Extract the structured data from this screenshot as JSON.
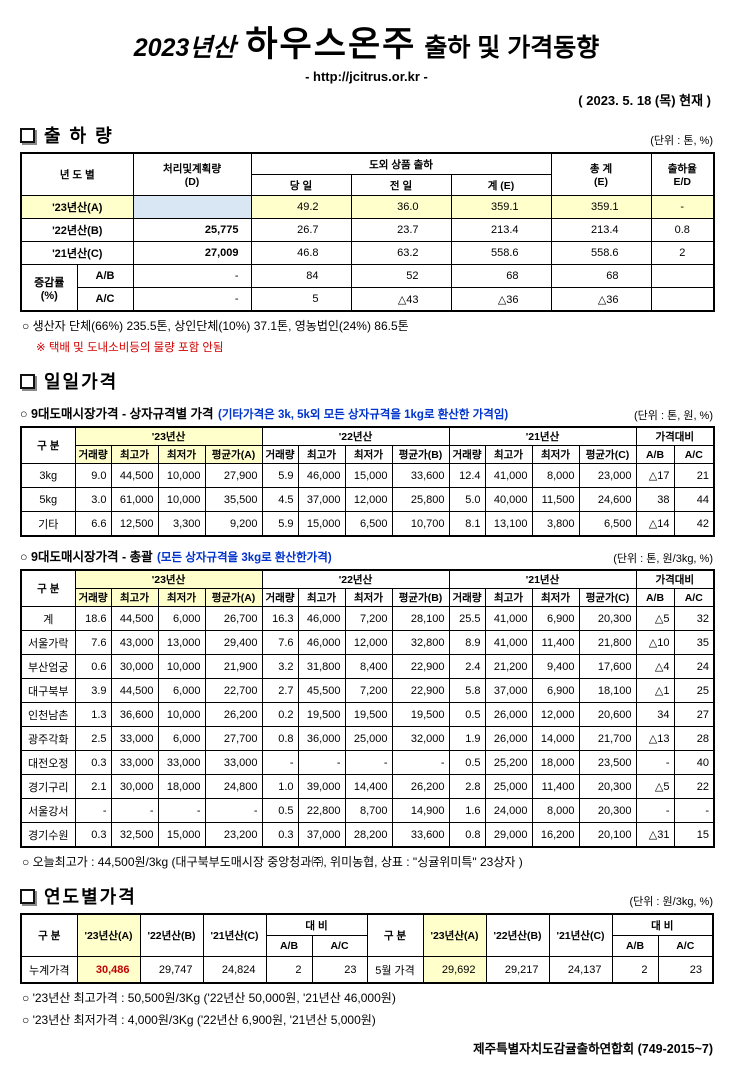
{
  "header": {
    "title_year": "2023년산",
    "title_main": "하우스온주",
    "title_suffix": "출하 및 가격동향",
    "url": "- http://jcitrus.or.kr -",
    "date": "( 2023. 5. 18 (목) 현재 )"
  },
  "shipment": {
    "heading": "출 하 량",
    "unit": "(단위 : 톤, %)",
    "headers": {
      "year": "년 도 별",
      "plan_l1": "처리및계획량",
      "plan_l2": "(D)",
      "export_group": "도외 상품 출하",
      "today": "당 일",
      "yesterday": "전 일",
      "sum": "계 (E)",
      "total_l1": "총 계",
      "total_l2": "(E)",
      "rate_l1": "출하율",
      "rate_l2": "E/D"
    },
    "row_23": {
      "label": "'23년산(A)",
      "plan": "",
      "today": "49.2",
      "yesterday": "36.0",
      "sum": "359.1",
      "total": "359.1",
      "rate": "-"
    },
    "row_22": {
      "label": "'22년산(B)",
      "plan": "25,775",
      "today": "26.7",
      "yesterday": "23.7",
      "sum": "213.4",
      "total": "213.4",
      "rate": "0.8"
    },
    "row_21": {
      "label": "'21년산(C)",
      "plan": "27,009",
      "today": "46.8",
      "yesterday": "63.2",
      "sum": "558.6",
      "total": "558.6",
      "rate": "2"
    },
    "change_label_l1": "증감률",
    "change_label_l2": "(%)",
    "row_ab": {
      "label": "A/B",
      "plan": "-",
      "today": "84",
      "yesterday": "52",
      "sum": "68",
      "total": "68",
      "rate": ""
    },
    "row_ac": {
      "label": "A/C",
      "plan": "-",
      "today": "5",
      "yesterday": "△43",
      "sum": "△36",
      "total": "△36",
      "rate": ""
    },
    "note1": "○ 생산자 단체(66%) 235.5톤, 상인단체(10%) 37.1톤, 영농법인(24%) 86.5톤",
    "note2": "※ 택배 및 도내소비등의 물량 포함 안됨"
  },
  "daily": {
    "heading": "일일가격",
    "sub1": {
      "title": "○ 9대도매시장가격 - 상자규격별 가격",
      "title_blue": "(기타가격은 3k, 5k외 모든 상자규격을 1kg로 환산한 가격임)",
      "unit": "(단위 : 톤, 원, %)"
    },
    "sub2": {
      "title": "○ 9대도매시장가격 - 총괄",
      "title_blue": "(모든 상자규격을 3kg로 환산한가격)",
      "unit": "(단위 : 톤, 원/3kg, %)"
    },
    "headers": {
      "gubun": "구  분",
      "y23": "'23년산",
      "y22": "'22년산",
      "y21": "'21년산",
      "compare": "가격대비",
      "vol": "거래량",
      "high": "최고가",
      "low": "최저가",
      "avg_a": "평균가(A)",
      "avg_b": "평균가(B)",
      "avg_c": "평균가(C)",
      "ab": "A/B",
      "ac": "A/C"
    },
    "size_rows": [
      [
        "3kg",
        "9.0",
        "44,500",
        "10,000",
        "27,900",
        "5.9",
        "46,000",
        "15,000",
        "33,600",
        "12.4",
        "41,000",
        "8,000",
        "23,000",
        "△17",
        "21"
      ],
      [
        "5kg",
        "3.0",
        "61,000",
        "10,000",
        "35,500",
        "4.5",
        "37,000",
        "12,000",
        "25,800",
        "5.0",
        "40,000",
        "11,500",
        "24,600",
        "38",
        "44"
      ],
      [
        "기타",
        "6.6",
        "12,500",
        "3,300",
        "9,200",
        "5.9",
        "15,000",
        "6,500",
        "10,700",
        "8.1",
        "13,100",
        "3,800",
        "6,500",
        "△14",
        "42"
      ]
    ],
    "market_rows": [
      [
        "계",
        "18.6",
        "44,500",
        "6,000",
        "26,700",
        "16.3",
        "46,000",
        "7,200",
        "28,100",
        "25.5",
        "41,000",
        "6,900",
        "20,300",
        "△5",
        "32"
      ],
      [
        "서울가락",
        "7.6",
        "43,000",
        "13,000",
        "29,400",
        "7.6",
        "46,000",
        "12,000",
        "32,800",
        "8.9",
        "41,000",
        "11,400",
        "21,800",
        "△10",
        "35"
      ],
      [
        "부산엄궁",
        "0.6",
        "30,000",
        "10,000",
        "21,900",
        "3.2",
        "31,800",
        "8,400",
        "22,900",
        "2.4",
        "21,200",
        "9,400",
        "17,600",
        "△4",
        "24"
      ],
      [
        "대구북부",
        "3.9",
        "44,500",
        "6,000",
        "22,700",
        "2.7",
        "45,500",
        "7,200",
        "22,900",
        "5.8",
        "37,000",
        "6,900",
        "18,100",
        "△1",
        "25"
      ],
      [
        "인천남촌",
        "1.3",
        "36,600",
        "10,000",
        "26,200",
        "0.2",
        "19,500",
        "19,500",
        "19,500",
        "0.5",
        "26,000",
        "12,000",
        "20,600",
        "34",
        "27"
      ],
      [
        "광주각화",
        "2.5",
        "33,000",
        "6,000",
        "27,700",
        "0.8",
        "36,000",
        "25,000",
        "32,000",
        "1.9",
        "26,000",
        "14,000",
        "21,700",
        "△13",
        "28"
      ],
      [
        "대전오정",
        "0.3",
        "33,000",
        "33,000",
        "33,000",
        "-",
        "-",
        "-",
        "-",
        "0.5",
        "25,200",
        "18,000",
        "23,500",
        "-",
        "40"
      ],
      [
        "경기구리",
        "2.1",
        "30,000",
        "18,000",
        "24,800",
        "1.0",
        "39,000",
        "14,400",
        "26,200",
        "2.8",
        "25,000",
        "11,400",
        "20,300",
        "△5",
        "22"
      ],
      [
        "서울강서",
        "-",
        "-",
        "-",
        "-",
        "0.5",
        "22,800",
        "8,700",
        "14,900",
        "1.6",
        "24,000",
        "8,000",
        "20,300",
        "-",
        "-"
      ],
      [
        "경기수원",
        "0.3",
        "32,500",
        "15,000",
        "23,200",
        "0.3",
        "37,000",
        "28,200",
        "33,600",
        "0.8",
        "29,000",
        "16,200",
        "20,100",
        "△31",
        "15"
      ]
    ],
    "today_high_note": "○ 오늘최고가 : 44,500원/3kg (대구북부도매시장 중앙청과㈜, 위미농협, 상표 : \"싱귤위미특\" 23상자 )"
  },
  "yearly": {
    "heading": "연도별가격",
    "unit": "(단위 : 원/3kg, %)",
    "headers": {
      "gubun": "구  분",
      "a": "'23년산(A)",
      "b": "'22년산(B)",
      "c": "'21년산(C)",
      "daebi": "대  비",
      "ab": "A/B",
      "ac": "A/C"
    },
    "left": {
      "label": "누계가격",
      "a": "30,486",
      "b": "29,747",
      "c": "24,824",
      "ab": "2",
      "ac": "23"
    },
    "right": {
      "label": "5월 가격",
      "a": "29,692",
      "b": "29,217",
      "c": "24,137",
      "ab": "2",
      "ac": "23"
    },
    "note1": "○ '23년산 최고가격 : 50,500원/3Kg ('22년산 50,000원, '21년산 46,000원)",
    "note2": "○ '23년산 최저가격 :  4,000원/3Kg ('22년산  6,900원, '21년산  5,000원)",
    "footer": "제주특별자치도감귤출하연합회 (749-2015~7)"
  }
}
